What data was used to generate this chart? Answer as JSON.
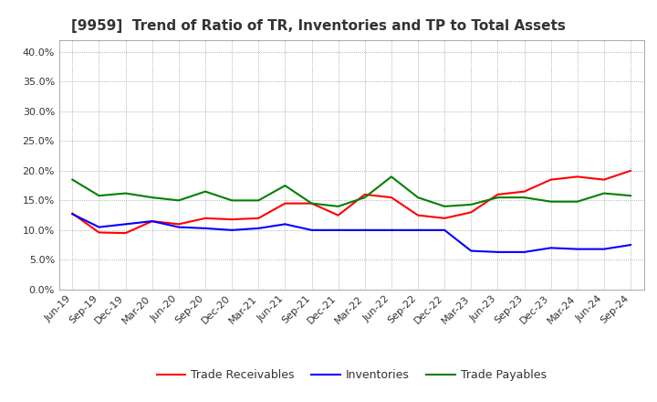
{
  "title": "[9959]  Trend of Ratio of TR, Inventories and TP to Total Assets",
  "x_labels": [
    "Jun-19",
    "Sep-19",
    "Dec-19",
    "Mar-20",
    "Jun-20",
    "Sep-20",
    "Dec-20",
    "Mar-21",
    "Jun-21",
    "Sep-21",
    "Dec-21",
    "Mar-22",
    "Jun-22",
    "Sep-22",
    "Dec-22",
    "Mar-23",
    "Jun-23",
    "Sep-23",
    "Dec-23",
    "Mar-24",
    "Jun-24",
    "Sep-24"
  ],
  "trade_receivables": [
    0.128,
    0.096,
    0.095,
    0.115,
    0.11,
    0.12,
    0.118,
    0.12,
    0.145,
    0.145,
    0.125,
    0.16,
    0.155,
    0.125,
    0.12,
    0.13,
    0.16,
    0.165,
    0.185,
    0.19,
    0.185,
    0.2
  ],
  "inventories": [
    0.127,
    0.105,
    0.11,
    0.115,
    0.105,
    0.103,
    0.1,
    0.103,
    0.11,
    0.1,
    0.1,
    0.1,
    0.1,
    0.1,
    0.1,
    0.065,
    0.063,
    0.063,
    0.07,
    0.068,
    0.068,
    0.075
  ],
  "trade_payables": [
    0.185,
    0.158,
    0.162,
    0.155,
    0.15,
    0.165,
    0.15,
    0.15,
    0.175,
    0.145,
    0.14,
    0.155,
    0.19,
    0.155,
    0.14,
    0.143,
    0.155,
    0.155,
    0.148,
    0.148,
    0.162,
    0.158
  ],
  "colors": {
    "trade_receivables": "#FF0000",
    "inventories": "#0000FF",
    "trade_payables": "#008000"
  },
  "ylim": [
    0.0,
    0.42
  ],
  "yticks": [
    0.0,
    0.05,
    0.1,
    0.15,
    0.2,
    0.25,
    0.3,
    0.35,
    0.4
  ],
  "background_color": "#FFFFFF",
  "plot_bg_color": "#FFFFFF",
  "grid_color": "#999999",
  "title_fontsize": 11,
  "tick_fontsize": 8,
  "legend_fontsize": 9
}
